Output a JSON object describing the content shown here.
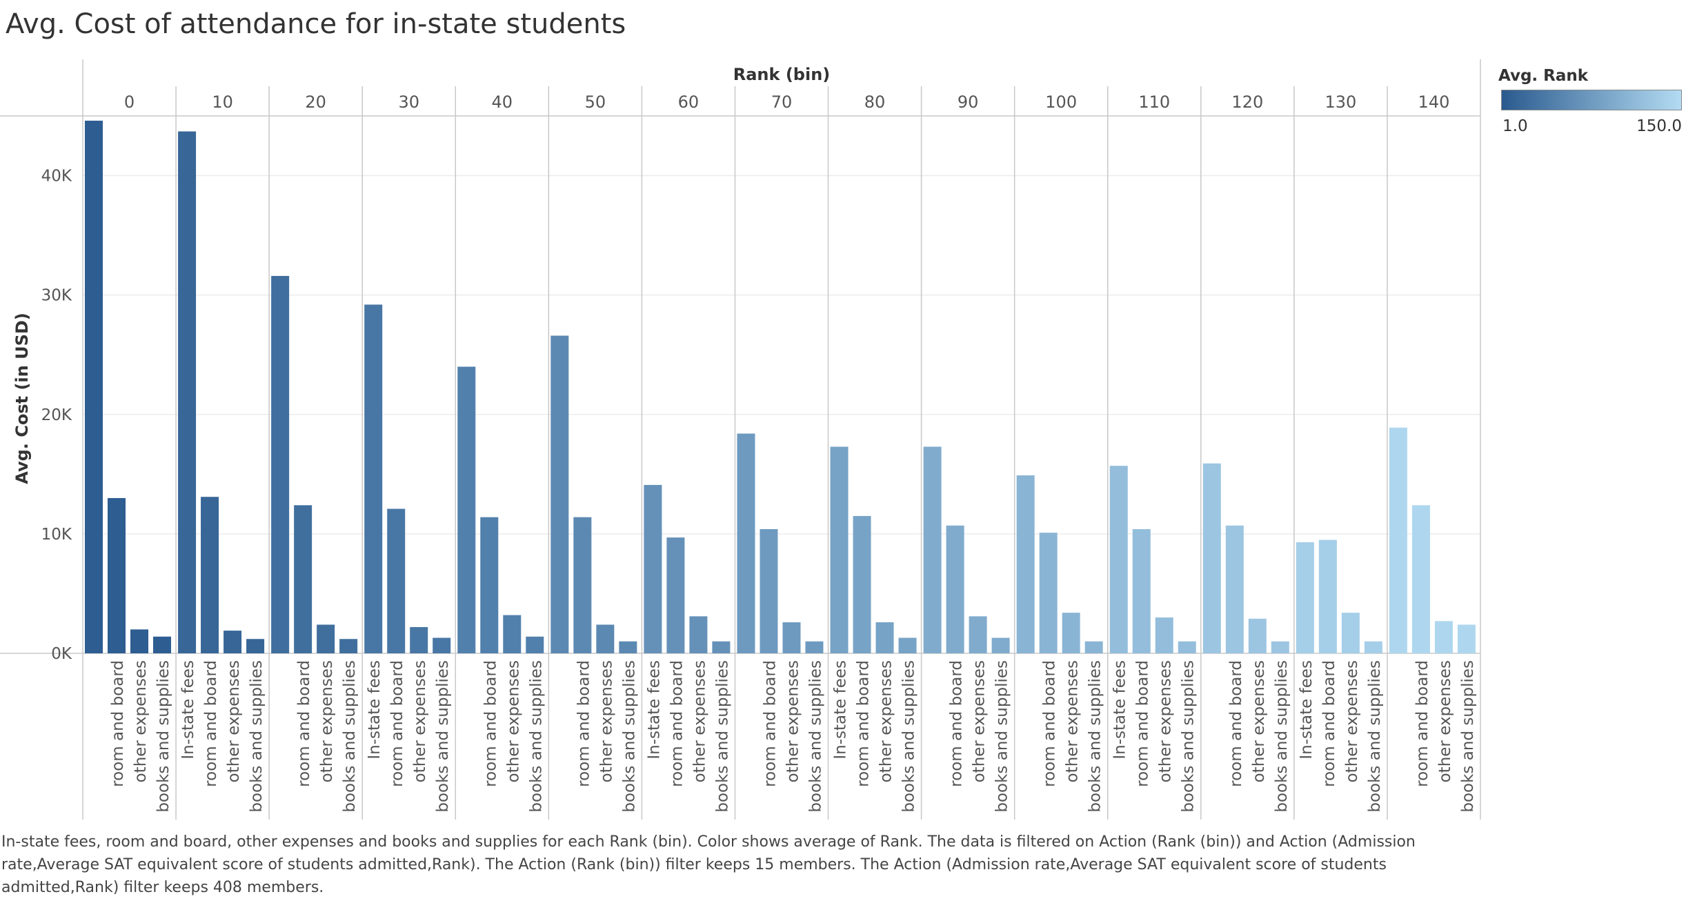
{
  "title": "Avg. Cost of attendance for in-state students",
  "caption": "In-state fees, room and board, other expenses and books and supplies for each Rank (bin).  Color shows average of Rank. The data is filtered on Action (Rank (bin)) and Action (Admission rate,Average SAT equivalent score of students admitted,Rank). The Action (Rank (bin)) filter keeps 15 members. The Action (Admission rate,Average SAT equivalent score of students admitted,Rank) filter keeps 408 members.",
  "legend": {
    "title": "Avg. Rank",
    "min_label": "1.0",
    "max_label": "150.0",
    "color_dark": "#2a5a8e",
    "color_light": "#b3dbf2"
  },
  "chart_data": {
    "type": "bar",
    "xlabel": "Rank (bin)",
    "ylabel": "Avg. Cost (in USD)",
    "ylim": [
      0,
      45000
    ],
    "yticks": [
      0,
      10000,
      20000,
      30000,
      40000
    ],
    "ytick_labels": [
      "0K",
      "10K",
      "20K",
      "30K",
      "40K"
    ],
    "categories": [
      "In-state fees",
      "room and board",
      "other expenses",
      "books and supplies"
    ],
    "groups": [
      {
        "bin": "0",
        "avg_rank": 5,
        "values": [
          44600,
          13000,
          2000,
          1400
        ],
        "shown": [
          false,
          true,
          true,
          true
        ]
      },
      {
        "bin": "10",
        "avg_rank": 15,
        "values": [
          43700,
          13100,
          1900,
          1200
        ],
        "shown": [
          true,
          true,
          true,
          true
        ]
      },
      {
        "bin": "20",
        "avg_rank": 25,
        "values": [
          31600,
          12400,
          2400,
          1200
        ],
        "shown": [
          false,
          true,
          true,
          true
        ]
      },
      {
        "bin": "30",
        "avg_rank": 35,
        "values": [
          29200,
          12100,
          2200,
          1300
        ],
        "shown": [
          true,
          true,
          true,
          true
        ]
      },
      {
        "bin": "40",
        "avg_rank": 45,
        "values": [
          24000,
          11400,
          3200,
          1400
        ],
        "shown": [
          false,
          true,
          true,
          true
        ]
      },
      {
        "bin": "50",
        "avg_rank": 55,
        "values": [
          26600,
          11400,
          2400,
          1000
        ],
        "shown": [
          false,
          true,
          true,
          true
        ]
      },
      {
        "bin": "60",
        "avg_rank": 65,
        "values": [
          14100,
          9700,
          3100,
          1000
        ],
        "shown": [
          true,
          true,
          true,
          true
        ]
      },
      {
        "bin": "70",
        "avg_rank": 75,
        "values": [
          18400,
          10400,
          2600,
          1000
        ],
        "shown": [
          false,
          true,
          true,
          true
        ]
      },
      {
        "bin": "80",
        "avg_rank": 85,
        "values": [
          17300,
          11500,
          2600,
          1300
        ],
        "shown": [
          true,
          true,
          true,
          true
        ]
      },
      {
        "bin": "90",
        "avg_rank": 95,
        "values": [
          17300,
          10700,
          3100,
          1300
        ],
        "shown": [
          false,
          true,
          true,
          true
        ]
      },
      {
        "bin": "100",
        "avg_rank": 105,
        "values": [
          14900,
          10100,
          3400,
          1000
        ],
        "shown": [
          false,
          true,
          true,
          true
        ]
      },
      {
        "bin": "110",
        "avg_rank": 115,
        "values": [
          15700,
          10400,
          3000,
          1000
        ],
        "shown": [
          true,
          true,
          true,
          true
        ]
      },
      {
        "bin": "120",
        "avg_rank": 125,
        "values": [
          15900,
          10700,
          2900,
          1000
        ],
        "shown": [
          false,
          true,
          true,
          true
        ]
      },
      {
        "bin": "130",
        "avg_rank": 135,
        "values": [
          9300,
          9500,
          3400,
          1000
        ],
        "shown": [
          true,
          true,
          true,
          true
        ]
      },
      {
        "bin": "140",
        "avg_rank": 145,
        "values": [
          18900,
          12400,
          2700,
          2400
        ],
        "shown": [
          false,
          true,
          true,
          true
        ]
      }
    ]
  }
}
